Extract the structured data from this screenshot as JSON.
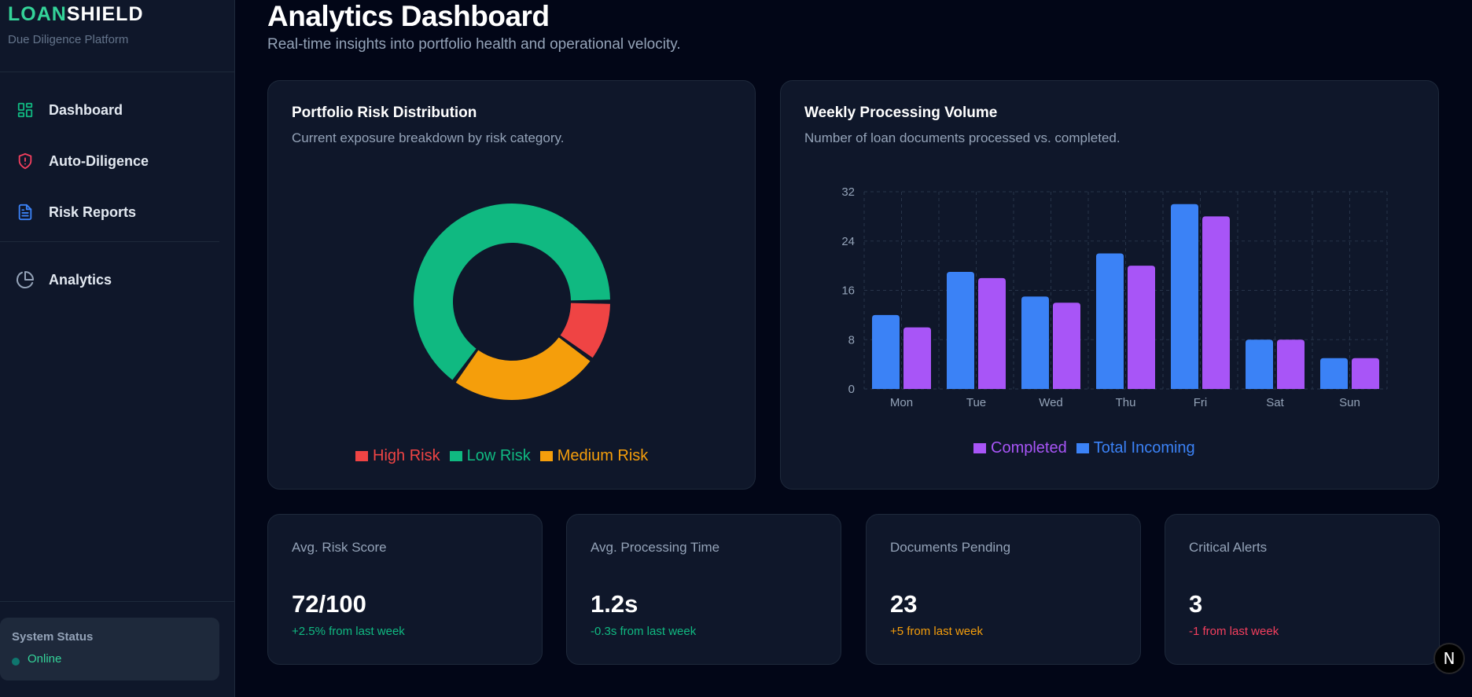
{
  "sidebar": {
    "brand_part1": "LOAN",
    "brand_part2": "SHIELD",
    "tagline": "Due Diligence Platform",
    "items": [
      {
        "label": "Dashboard",
        "icon": "layout-grid-icon",
        "color": "#10b981"
      },
      {
        "label": "Auto-Diligence",
        "icon": "shield-alert-icon",
        "color": "#f43f5e"
      },
      {
        "label": "Risk Reports",
        "icon": "file-text-icon",
        "color": "#3b82f6"
      },
      {
        "label": "Analytics",
        "icon": "pie-chart-icon",
        "color": "#94a3b8"
      }
    ],
    "status": {
      "title": "System Status",
      "value": "Online"
    }
  },
  "header": {
    "title": "Analytics Dashboard",
    "subtitle": "Real-time insights into portfolio health and operational velocity."
  },
  "risk_card": {
    "title": "Portfolio Risk Distribution",
    "subtitle": "Current exposure breakdown by risk category."
  },
  "volume_card": {
    "title": "Weekly Processing Volume",
    "subtitle": "Number of loan documents processed vs. completed."
  },
  "stats": [
    {
      "label": "Avg. Risk Score",
      "value": "72/100",
      "delta": "+2.5% from last week",
      "delta_color": "#10b981"
    },
    {
      "label": "Avg. Processing Time",
      "value": "1.2s",
      "delta": "-0.3s from last week",
      "delta_color": "#10b981"
    },
    {
      "label": "Documents Pending",
      "value": "23",
      "delta": "+5 from last week",
      "delta_color": "#f59e0b"
    },
    {
      "label": "Critical Alerts",
      "value": "3",
      "delta": "-1 from last week",
      "delta_color": "#f43f5e"
    }
  ],
  "dev_indicator": {
    "label": "N"
  },
  "chart_data": [
    {
      "type": "pie",
      "variant": "doughnut",
      "title": "Portfolio Risk Distribution",
      "categories": [
        "High Risk",
        "Low Risk",
        "Medium Risk"
      ],
      "values": [
        10,
        65,
        25
      ],
      "colors": [
        "#ef4444",
        "#10b981",
        "#f59e0b"
      ],
      "legend": "bottom"
    },
    {
      "type": "bar",
      "title": "Weekly Processing Volume",
      "categories": [
        "Mon",
        "Tue",
        "Wed",
        "Thu",
        "Fri",
        "Sat",
        "Sun"
      ],
      "series": [
        {
          "name": "Total Incoming",
          "color": "#3b82f6",
          "values": [
            12,
            19,
            15,
            22,
            30,
            8,
            5
          ]
        },
        {
          "name": "Completed",
          "color": "#a855f7",
          "values": [
            10,
            18,
            14,
            20,
            28,
            8,
            5
          ]
        }
      ],
      "legend_order": [
        "Completed",
        "Total Incoming"
      ],
      "yticks": [
        0,
        8,
        16,
        24,
        32
      ],
      "ylim": [
        0,
        32
      ],
      "grid": true,
      "legend": "bottom",
      "xlabel": "",
      "ylabel": ""
    }
  ]
}
